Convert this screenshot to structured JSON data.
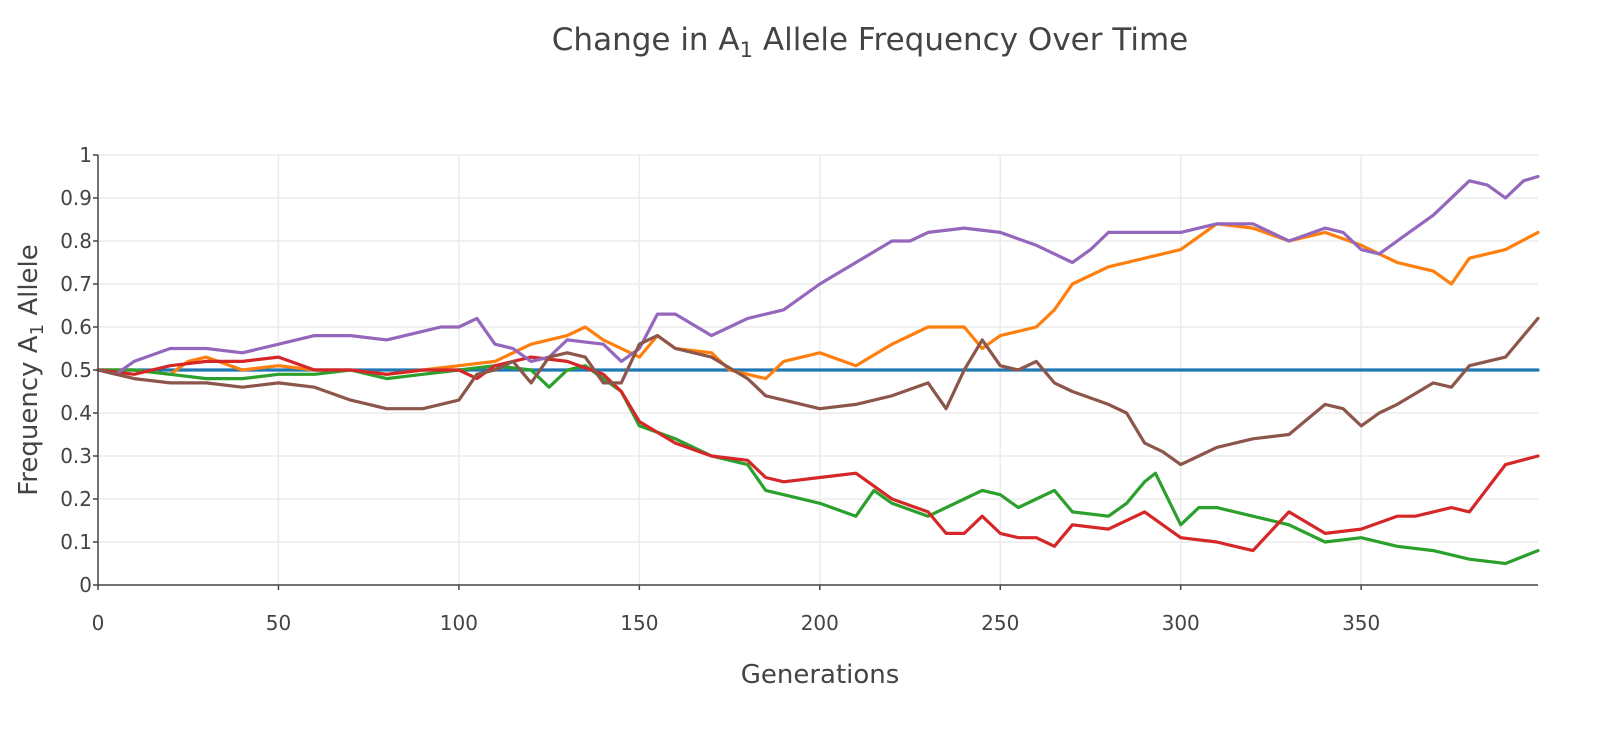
{
  "chart_data": {
    "type": "line",
    "title": "Change in A",
    "title_subscript": "1",
    "title_suffix": " Allele Frequency Over Time",
    "xlabel": "Generations",
    "ylabel": "Frequency A",
    "ylabel_subscript": "1",
    "ylabel_suffix": " Allele",
    "xlim": [
      0,
      399
    ],
    "ylim": [
      0,
      1
    ],
    "x_ticks": [
      "0",
      "50",
      "100",
      "150",
      "200",
      "250",
      "300",
      "350"
    ],
    "y_ticks": [
      "0",
      "0.1",
      "0.2",
      "0.3",
      "0.4",
      "0.5",
      "0.6",
      "0.7",
      "0.8",
      "0.9",
      "1"
    ],
    "grid": true,
    "series": [
      {
        "color": "#1f77b4",
        "x": [
          0,
          399
        ],
        "values": [
          0.5,
          0.5
        ]
      },
      {
        "color": "#ff7f0e",
        "x": [
          0,
          10,
          20,
          25,
          30,
          40,
          50,
          60,
          70,
          80,
          90,
          100,
          110,
          120,
          130,
          135,
          140,
          150,
          155,
          160,
          170,
          175,
          180,
          185,
          190,
          200,
          210,
          220,
          230,
          240,
          245,
          250,
          260,
          265,
          270,
          280,
          290,
          300,
          310,
          320,
          330,
          340,
          350,
          360,
          370,
          375,
          380,
          390,
          399
        ],
        "values": [
          0.5,
          0.5,
          0.49,
          0.52,
          0.53,
          0.5,
          0.51,
          0.5,
          0.5,
          0.49,
          0.5,
          0.51,
          0.52,
          0.56,
          0.58,
          0.6,
          0.57,
          0.53,
          0.58,
          0.55,
          0.54,
          0.5,
          0.49,
          0.48,
          0.52,
          0.54,
          0.51,
          0.56,
          0.6,
          0.6,
          0.55,
          0.58,
          0.6,
          0.64,
          0.7,
          0.74,
          0.76,
          0.78,
          0.84,
          0.83,
          0.8,
          0.82,
          0.79,
          0.75,
          0.73,
          0.7,
          0.76,
          0.78,
          0.82
        ]
      },
      {
        "color": "#2ca02c",
        "x": [
          0,
          10,
          20,
          30,
          40,
          50,
          60,
          70,
          80,
          90,
          100,
          110,
          120,
          125,
          130,
          135,
          140,
          145,
          150,
          160,
          170,
          180,
          185,
          190,
          200,
          210,
          215,
          220,
          230,
          240,
          245,
          250,
          255,
          260,
          265,
          270,
          280,
          285,
          290,
          293,
          300,
          305,
          310,
          320,
          330,
          340,
          350,
          360,
          370,
          380,
          390,
          399
        ],
        "values": [
          0.5,
          0.5,
          0.49,
          0.48,
          0.48,
          0.49,
          0.49,
          0.5,
          0.48,
          0.49,
          0.5,
          0.51,
          0.5,
          0.46,
          0.5,
          0.51,
          0.48,
          0.45,
          0.37,
          0.34,
          0.3,
          0.28,
          0.22,
          0.21,
          0.19,
          0.16,
          0.22,
          0.19,
          0.16,
          0.2,
          0.22,
          0.21,
          0.18,
          0.2,
          0.22,
          0.17,
          0.16,
          0.19,
          0.24,
          0.26,
          0.14,
          0.18,
          0.18,
          0.16,
          0.14,
          0.1,
          0.11,
          0.09,
          0.08,
          0.06,
          0.05,
          0.08
        ]
      },
      {
        "color": "#d62728",
        "x": [
          0,
          10,
          20,
          30,
          40,
          50,
          60,
          70,
          80,
          90,
          100,
          105,
          110,
          120,
          130,
          140,
          145,
          150,
          160,
          170,
          180,
          185,
          190,
          200,
          210,
          220,
          230,
          235,
          240,
          245,
          250,
          255,
          260,
          265,
          270,
          280,
          290,
          300,
          310,
          315,
          320,
          330,
          340,
          350,
          360,
          365,
          370,
          375,
          380,
          390,
          399
        ],
        "values": [
          0.5,
          0.49,
          0.51,
          0.52,
          0.52,
          0.53,
          0.5,
          0.5,
          0.49,
          0.5,
          0.5,
          0.48,
          0.51,
          0.53,
          0.52,
          0.49,
          0.45,
          0.38,
          0.33,
          0.3,
          0.29,
          0.25,
          0.24,
          0.25,
          0.26,
          0.2,
          0.17,
          0.12,
          0.12,
          0.16,
          0.12,
          0.11,
          0.11,
          0.09,
          0.14,
          0.13,
          0.17,
          0.11,
          0.1,
          0.09,
          0.08,
          0.17,
          0.12,
          0.13,
          0.16,
          0.16,
          0.17,
          0.18,
          0.17,
          0.28,
          0.3
        ]
      },
      {
        "color": "#9467bd",
        "x": [
          0,
          5,
          10,
          20,
          30,
          40,
          50,
          60,
          70,
          80,
          90,
          95,
          100,
          105,
          110,
          115,
          120,
          125,
          130,
          140,
          145,
          150,
          155,
          160,
          170,
          175,
          180,
          190,
          200,
          210,
          220,
          225,
          230,
          240,
          250,
          260,
          270,
          275,
          280,
          290,
          300,
          310,
          320,
          330,
          340,
          345,
          350,
          355,
          360,
          370,
          380,
          385,
          390,
          395,
          399
        ],
        "values": [
          0.5,
          0.49,
          0.52,
          0.55,
          0.55,
          0.54,
          0.56,
          0.58,
          0.58,
          0.57,
          0.59,
          0.6,
          0.6,
          0.62,
          0.56,
          0.55,
          0.52,
          0.53,
          0.57,
          0.56,
          0.52,
          0.55,
          0.63,
          0.63,
          0.58,
          0.6,
          0.62,
          0.64,
          0.7,
          0.75,
          0.8,
          0.8,
          0.82,
          0.83,
          0.82,
          0.79,
          0.75,
          0.78,
          0.82,
          0.82,
          0.82,
          0.84,
          0.84,
          0.8,
          0.83,
          0.82,
          0.78,
          0.77,
          0.8,
          0.86,
          0.94,
          0.93,
          0.9,
          0.94,
          0.95
        ]
      },
      {
        "color": "#8c564b",
        "x": [
          0,
          10,
          20,
          30,
          40,
          50,
          60,
          70,
          80,
          90,
          100,
          105,
          110,
          115,
          120,
          125,
          130,
          135,
          140,
          145,
          150,
          155,
          160,
          170,
          180,
          185,
          190,
          200,
          210,
          220,
          230,
          235,
          240,
          245,
          250,
          255,
          260,
          265,
          270,
          280,
          285,
          290,
          295,
          300,
          305,
          310,
          320,
          330,
          340,
          345,
          350,
          355,
          360,
          370,
          375,
          380,
          390,
          399
        ],
        "values": [
          0.5,
          0.48,
          0.47,
          0.47,
          0.46,
          0.47,
          0.46,
          0.43,
          0.41,
          0.41,
          0.43,
          0.49,
          0.5,
          0.52,
          0.47,
          0.53,
          0.54,
          0.53,
          0.47,
          0.47,
          0.56,
          0.58,
          0.55,
          0.53,
          0.48,
          0.44,
          0.43,
          0.41,
          0.42,
          0.44,
          0.47,
          0.41,
          0.5,
          0.57,
          0.51,
          0.5,
          0.52,
          0.47,
          0.45,
          0.42,
          0.4,
          0.33,
          0.31,
          0.28,
          0.3,
          0.32,
          0.34,
          0.35,
          0.42,
          0.41,
          0.37,
          0.4,
          0.42,
          0.47,
          0.46,
          0.51,
          0.53,
          0.62
        ]
      }
    ]
  }
}
